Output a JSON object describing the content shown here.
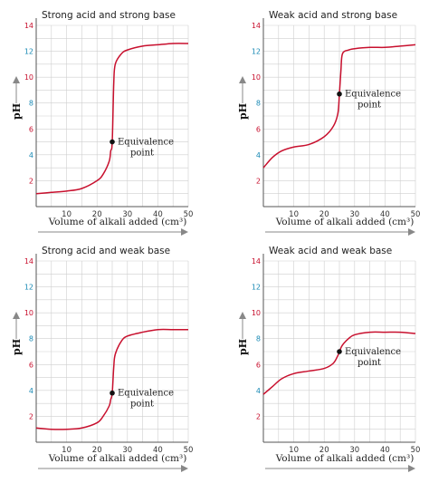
{
  "colors": {
    "curve": "#c8102e",
    "ytick_even": "#1a8ab5",
    "ytick_odd": "#c8102e",
    "grid": "#cfcfcf"
  },
  "chart_data": [
    {
      "type": "line",
      "title": "Strong acid and strong base",
      "xlabel": "Volume of alkali added (cm³)",
      "ylabel": "pH",
      "xlim": [
        0,
        50
      ],
      "ylim": [
        0,
        14
      ],
      "xticks": [
        10,
        20,
        30,
        40,
        50
      ],
      "yticks": [
        2,
        4,
        6,
        8,
        10,
        12,
        14
      ],
      "grid": true,
      "x": [
        0,
        5,
        10,
        15,
        20,
        22,
        24,
        24.5,
        25,
        25.5,
        26,
        28,
        30,
        35,
        40,
        45,
        50
      ],
      "y": [
        1,
        1.1,
        1.2,
        1.4,
        2.0,
        2.5,
        3.5,
        4.3,
        5.0,
        9.5,
        11.0,
        11.8,
        12.1,
        12.4,
        12.5,
        12.6,
        12.6
      ],
      "annotation": {
        "x": 25,
        "y": 5.0,
        "lines": [
          "Equivalence",
          "point"
        ]
      }
    },
    {
      "type": "line",
      "title": "Weak acid and strong base",
      "xlabel": "Volume of alkali added (cm³)",
      "ylabel": "pH",
      "xlim": [
        0,
        50
      ],
      "ylim": [
        0,
        14
      ],
      "xticks": [
        10,
        20,
        30,
        40,
        50
      ],
      "yticks": [
        2,
        4,
        6,
        8,
        10,
        12,
        14
      ],
      "grid": true,
      "x": [
        0,
        3,
        6,
        10,
        15,
        20,
        23,
        24.5,
        25,
        25.5,
        26,
        28,
        30,
        35,
        40,
        45,
        50
      ],
      "y": [
        3.0,
        3.8,
        4.3,
        4.6,
        4.8,
        5.4,
        6.2,
        7.2,
        8.7,
        10.5,
        11.8,
        12.1,
        12.2,
        12.3,
        12.3,
        12.4,
        12.5
      ],
      "annotation": {
        "x": 25,
        "y": 8.7,
        "lines": [
          "Equivalence",
          "point"
        ]
      }
    },
    {
      "type": "line",
      "title": "Strong acid and weak base",
      "xlabel": "Volume of alkali added (cm³)",
      "ylabel": "pH",
      "xlim": [
        0,
        50
      ],
      "ylim": [
        0,
        14
      ],
      "xticks": [
        10,
        20,
        30,
        40,
        50
      ],
      "yticks": [
        2,
        4,
        6,
        8,
        10,
        12,
        14
      ],
      "grid": true,
      "x": [
        0,
        5,
        10,
        15,
        20,
        22,
        24,
        24.5,
        25,
        25.5,
        26,
        28,
        30,
        35,
        40,
        45,
        50
      ],
      "y": [
        1.1,
        1.0,
        1.0,
        1.1,
        1.5,
        2.0,
        2.8,
        3.3,
        3.8,
        5.8,
        6.8,
        7.8,
        8.2,
        8.5,
        8.7,
        8.7,
        8.7
      ],
      "annotation": {
        "x": 25,
        "y": 3.8,
        "lines": [
          "Equivalence",
          "point"
        ]
      }
    },
    {
      "type": "line",
      "title": "Weak acid and weak base",
      "xlabel": "Volume of alkali added (cm³)",
      "ylabel": "pH",
      "xlim": [
        0,
        50
      ],
      "ylim": [
        0,
        14
      ],
      "xticks": [
        10,
        20,
        30,
        40,
        50
      ],
      "yticks": [
        2,
        4,
        6,
        8,
        10,
        12,
        14
      ],
      "grid": true,
      "x": [
        0,
        3,
        6,
        10,
        15,
        20,
        23,
        24.5,
        25,
        26,
        28,
        30,
        35,
        40,
        45,
        50
      ],
      "y": [
        3.7,
        4.3,
        4.9,
        5.3,
        5.5,
        5.7,
        6.1,
        6.7,
        7.0,
        7.5,
        8.0,
        8.3,
        8.5,
        8.5,
        8.5,
        8.4
      ],
      "annotation": {
        "x": 25,
        "y": 7.0,
        "lines": [
          "Equivalence",
          "point"
        ]
      }
    }
  ]
}
